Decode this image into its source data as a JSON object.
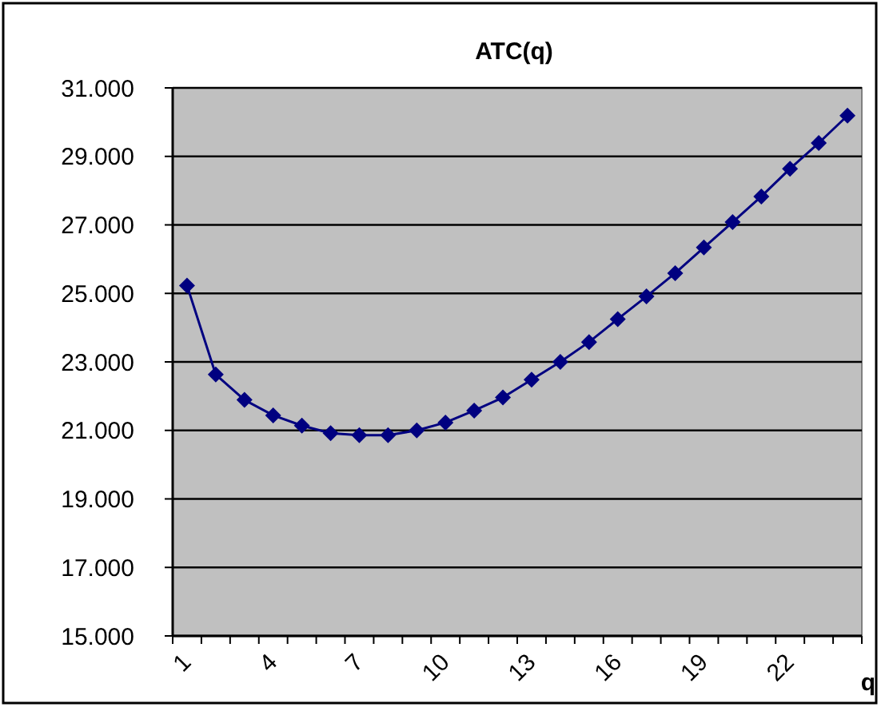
{
  "chart_data": {
    "type": "line",
    "title": "ATC(q)",
    "xlabel": "q",
    "categories": [
      "1",
      null,
      null,
      "4",
      null,
      null,
      "7",
      null,
      null,
      "10",
      null,
      null,
      "13",
      null,
      null,
      "16",
      null,
      null,
      "19",
      null,
      null,
      "22",
      null,
      null
    ],
    "series": [
      {
        "color": "#000080",
        "values": [
          25.23,
          22.63,
          21.89,
          21.44,
          21.14,
          20.92,
          20.86,
          20.86,
          21.0,
          21.23,
          21.58,
          21.96,
          22.48,
          23.0,
          23.58,
          24.25,
          24.91,
          25.59,
          26.34,
          27.08,
          27.83,
          28.64,
          29.39,
          30.19
        ]
      }
    ],
    "ylim": [
      15,
      31
    ],
    "yticks": [
      {
        "value": 15,
        "label": "15.000"
      },
      {
        "value": 17,
        "label": "17.000"
      },
      {
        "value": 19,
        "label": "19.000"
      },
      {
        "value": 21,
        "label": "21.000"
      },
      {
        "value": 23,
        "label": "23.000"
      },
      {
        "value": 25,
        "label": "25.000"
      },
      {
        "value": 27,
        "label": "27.000"
      },
      {
        "value": 29,
        "label": "29.000"
      },
      {
        "value": 31,
        "label": "31.000"
      }
    ],
    "grid": "y",
    "marker": "diamond",
    "line_style": "solid"
  }
}
